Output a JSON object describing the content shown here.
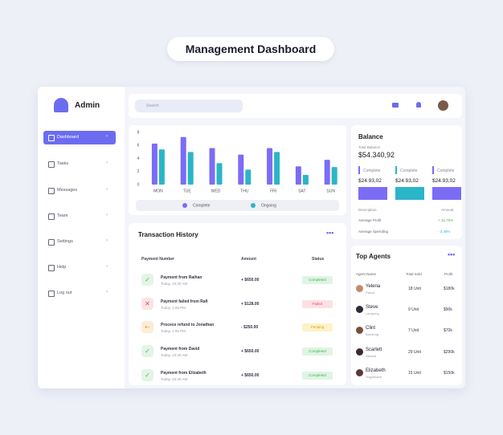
{
  "header": {
    "title": "Management Dashboard"
  },
  "sidebar": {
    "brand": "Admin",
    "items": [
      "Dashboard",
      "Tasks",
      "Messages",
      "Team",
      "Settings",
      "Help",
      "Log out"
    ]
  },
  "topbar": {
    "search": "Search"
  },
  "chart_data": {
    "type": "bar",
    "categories": [
      "MON",
      "TUE",
      "WED",
      "THU",
      "FRI",
      "SAT",
      "SUN"
    ],
    "series": [
      {
        "name": "Complete",
        "color": "#7b6cf6",
        "values": [
          6.3,
          7.3,
          5.6,
          4.6,
          5.6,
          2.8,
          3.8
        ]
      },
      {
        "name": "Ongoing",
        "color": "#2bb5c9",
        "values": [
          5.4,
          5.0,
          3.3,
          2.3,
          5.0,
          1.5,
          2.7
        ]
      }
    ],
    "ylim": [
      0,
      8
    ],
    "yticks": [
      0,
      2,
      4,
      6,
      8
    ],
    "grid": false
  },
  "balance": {
    "title": "Balance",
    "total_label": "Total Balance",
    "total": "$54.340,92",
    "cards": [
      {
        "label": "Complete",
        "value": "$24.93,02",
        "color": "#7b6cf6"
      },
      {
        "label": "Complete",
        "value": "$24.93,02",
        "color": "#2bb5c9"
      },
      {
        "label": "Complete",
        "value": "$24.93,02",
        "color": "#7b6cf6"
      }
    ],
    "columns": [
      "Description",
      "Amount"
    ],
    "rows": [
      [
        "Average Profit",
        "+ 16,76%"
      ],
      [
        "Average Spending",
        "- 3,48%"
      ]
    ]
  },
  "transactions": {
    "title": "Transaction History",
    "columns": [
      "Payment Number",
      "Amount",
      "Status"
    ],
    "rows": [
      [
        "Payment from Raihan",
        "Today, 10:30 AM",
        "+ $650.00",
        "Completed"
      ],
      [
        "Payment failed from Rafi",
        "Today, 1:05 PM",
        "+ $128.00",
        "Failed"
      ],
      [
        "Process refund to Jonathan",
        "Today, 1:05 PM",
        "- $250.00",
        "Pending"
      ],
      [
        "Payment from David",
        "Today, 10:30 AM",
        "+ $650.00",
        "Completed"
      ],
      [
        "Payment from Elizabeth",
        "Today, 10:30 AM",
        "+ $650.00",
        "Completed"
      ]
    ]
  },
  "agents": {
    "title": "Top Agents",
    "columns": [
      "Agent Name",
      "Total Sold",
      "Profit"
    ],
    "rows": [
      [
        "Yelena",
        "Pasca",
        "18 Unit",
        "$180k"
      ],
      [
        "Steve",
        "Lampung",
        "9 Unit",
        "$90k"
      ],
      [
        "Clint",
        "Bandung",
        "7 Unit",
        "$70k"
      ],
      [
        "Scarlett",
        "Jakarta",
        "29 Unit",
        "$290k"
      ],
      [
        "Elizabeth",
        "Yogyakarta",
        "15 Unit",
        "$150k"
      ]
    ]
  }
}
